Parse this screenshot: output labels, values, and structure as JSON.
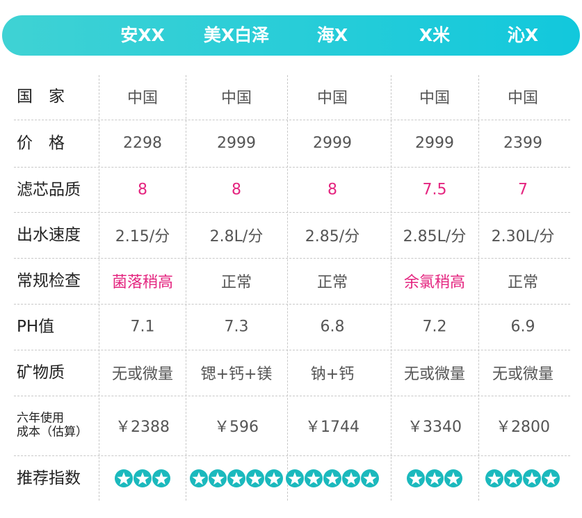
{
  "header": {
    "brands": [
      "安XX",
      "美X白泽",
      "海X",
      "X米",
      "沁X"
    ]
  },
  "table": {
    "rows": [
      {
        "label": [
          "国　家"
        ],
        "cells": [
          "中国",
          "中国",
          "中国",
          "中国",
          "中国"
        ]
      },
      {
        "label": [
          "价　格"
        ],
        "cells": [
          "2298",
          "2999",
          "2999",
          "2999",
          "2399"
        ]
      },
      {
        "label": [
          "滤芯品质"
        ],
        "cells": [
          "8",
          "8",
          "8",
          "7.5",
          "7"
        ]
      },
      {
        "label": [
          "出水速度"
        ],
        "cells": [
          "2.15/分",
          "2.8L/分",
          "2.85/分",
          "2.85L/分",
          "2.30L/分"
        ]
      },
      {
        "label": [
          "常规检查"
        ],
        "cells": [
          "菌落稍高",
          "正常",
          "正常",
          "余氯稍高",
          "正常"
        ]
      },
      {
        "label": [
          "PH值"
        ],
        "cells": [
          "7.1",
          "7.3",
          "6.8",
          "7.2",
          "6.9"
        ]
      },
      {
        "label": [
          "矿物质"
        ],
        "cells": [
          "无或微量",
          "锶+钙+镁",
          "钠+钙",
          "无或微量",
          "无或微量"
        ]
      },
      {
        "label": [
          "六年使用",
          "成本（估算）"
        ],
        "cells": [
          "￥2388",
          "￥596",
          "￥1744",
          "￥3340",
          "￥2800"
        ]
      }
    ],
    "rating": {
      "label": "推荐指数",
      "stars": [
        3,
        5,
        5,
        3,
        4
      ]
    }
  }
}
